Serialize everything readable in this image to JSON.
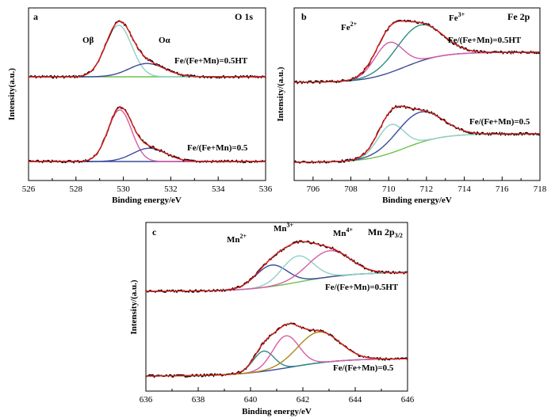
{
  "chart_data": [
    {
      "type": "line",
      "panel_label": "a",
      "title": "O 1s",
      "xlabel": "Binding energy/eV",
      "ylabel": "Intensity(a.u.)",
      "xlim": [
        526,
        536
      ],
      "x_ticks": [
        "526",
        "528",
        "530",
        "532",
        "534",
        "536"
      ],
      "x_reversed": false,
      "sample_labels": [
        "Fe/(Fe+Mn)=0.5HT",
        "Fe/(Fe+Mn)=0.5"
      ],
      "peak_labels": [
        "Oβ",
        "Oα"
      ],
      "curves": [
        {
          "sample": "Fe/(Fe+Mn)=0.5HT",
          "role": "peak",
          "label": "Oβ",
          "center": 529.8,
          "width": 0.55,
          "height": 0.62,
          "color": "#8fd0c8"
        },
        {
          "sample": "Fe/(Fe+Mn)=0.5HT",
          "role": "peak",
          "label": "Oα",
          "center": 531.0,
          "width": 0.75,
          "height": 0.16,
          "color": "#3b4a99"
        },
        {
          "sample": "Fe/(Fe+Mn)=0.5",
          "role": "peak",
          "label": "Oβ",
          "center": 529.85,
          "width": 0.5,
          "height": 0.62,
          "color": "#d75ba6"
        },
        {
          "sample": "Fe/(Fe+Mn)=0.5",
          "role": "peak",
          "label": "Oα",
          "center": 531.1,
          "width": 0.7,
          "height": 0.16,
          "color": "#3b4a99"
        }
      ],
      "colors": {
        "experimental": "#000000",
        "fit": "#e0201c",
        "background": "#6cc24a"
      }
    },
    {
      "type": "line",
      "panel_label": "b",
      "title": "Fe 2p",
      "xlabel": "Binding energy/eV",
      "ylabel": "Intensity/(a.u.)",
      "xlim": [
        705,
        718
      ],
      "x_ticks": [
        "706",
        "708",
        "710",
        "712",
        "714",
        "716",
        "718"
      ],
      "sample_labels": [
        "Fe/(Fe+Mn)=0.5HT",
        "Fe/(Fe+Mn)=0.5"
      ],
      "peak_labels": [
        "Fe2+",
        "Fe3+"
      ],
      "curves": [
        {
          "sample": "Fe/(Fe+Mn)=0.5HT",
          "role": "peak",
          "label": "Fe2+",
          "center": 710.0,
          "width": 0.75,
          "height": 0.32,
          "color": "#d75ba6"
        },
        {
          "sample": "Fe/(Fe+Mn)=0.5HT",
          "role": "peak",
          "label": "Fe3+",
          "center": 711.6,
          "width": 1.2,
          "height": 0.38,
          "color": "#2b8c83"
        },
        {
          "sample": "Fe/(Fe+Mn)=0.5",
          "role": "peak",
          "label": "Fe2+",
          "center": 710.1,
          "width": 0.7,
          "height": 0.3,
          "color": "#8fd0c8"
        },
        {
          "sample": "Fe/(Fe+Mn)=0.5",
          "role": "peak",
          "label": "Fe3+",
          "center": 711.6,
          "width": 1.2,
          "height": 0.32,
          "color": "#3b4a99"
        }
      ],
      "colors": {
        "experimental": "#000000",
        "fit": "#e0201c",
        "background_ht": "#3b4a99",
        "background": "#6cc24a"
      }
    },
    {
      "type": "line",
      "panel_label": "c",
      "title": "Mn 2p",
      "title_sub": "3/2",
      "xlabel": "Binding energy/eV",
      "ylabel": "Intensity/(a.u.)",
      "xlim": [
        636,
        646
      ],
      "x_ticks": [
        "636",
        "638",
        "640",
        "642",
        "644",
        "646"
      ],
      "sample_labels": [
        "Fe/(Fe+Mn)=0.5HT",
        "Fe/(Fe+Mn)=0.5"
      ],
      "peak_labels": [
        "Mn2+",
        "Mn3+",
        "Mn4+"
      ],
      "curves": [
        {
          "sample": "Fe/(Fe+Mn)=0.5HT",
          "role": "peak",
          "label": "Mn2+",
          "center": 640.8,
          "width": 0.6,
          "height": 0.18,
          "color": "#3b4a99"
        },
        {
          "sample": "Fe/(Fe+Mn)=0.5HT",
          "role": "peak",
          "label": "Mn3+",
          "center": 641.8,
          "width": 0.6,
          "height": 0.22,
          "color": "#8fd0c8"
        },
        {
          "sample": "Fe/(Fe+Mn)=0.5HT",
          "role": "peak",
          "label": "Mn4+",
          "center": 643.0,
          "width": 0.8,
          "height": 0.22,
          "color": "#d75ba6"
        },
        {
          "sample": "Fe/(Fe+Mn)=0.5",
          "role": "peak",
          "label": "Mn2+",
          "center": 640.5,
          "width": 0.4,
          "height": 0.17,
          "color": "#2b8c83"
        },
        {
          "sample": "Fe/(Fe+Mn)=0.5",
          "role": "peak",
          "label": "Mn3+",
          "center": 641.35,
          "width": 0.5,
          "height": 0.27,
          "color": "#d75ba6"
        },
        {
          "sample": "Fe/(Fe+Mn)=0.5",
          "role": "peak",
          "label": "Mn4+",
          "center": 642.6,
          "width": 0.8,
          "height": 0.26,
          "color": "#a88b1e"
        }
      ],
      "colors": {
        "experimental": "#000000",
        "fit": "#e0201c",
        "background_ht": "#6cc24a",
        "background": "#3b4a99"
      }
    }
  ]
}
